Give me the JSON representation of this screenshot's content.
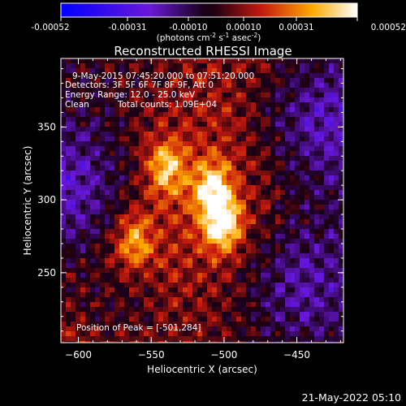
{
  "chart_data": {
    "type": "heatmap",
    "title": "Reconstructed RHESSI Image",
    "xlabel": "Heliocentric X (arcsec)",
    "ylabel": "Heliocentric Y (arcsec)",
    "xlim": [
      -612,
      -418
    ],
    "ylim": [
      202,
      397
    ],
    "xticks": [
      -600,
      -550,
      -500,
      -450
    ],
    "yticks": [
      250,
      300,
      350
    ],
    "colorbar": {
      "ticks": [
        "-0.00052",
        "-0.00031",
        "-0.00010",
        "0.00010",
        "0.00031",
        "0.00052"
      ],
      "unit_prefix": "(photons cm",
      "unit_exp1": "-2",
      "unit_mid": " s",
      "unit_exp2": "-1",
      "unit_mid2": " asec",
      "unit_exp3": "-2",
      "unit_suffix": ")",
      "range": [
        -0.00052,
        0.00052
      ]
    },
    "annotations": {
      "time_range": "9-May-2015 07:45:20.000 to 07:51:20.000",
      "detectors": "Detectors: 3F 5F 6F 7F 8F 9F, Att 0",
      "energy": "Energy Range: 12.0 - 25.0 keV",
      "method": "Clean",
      "counts": "Total counts: 1.09E+04",
      "peak": "Position of Peak = [-501,284]"
    },
    "sources": [
      {
        "x": -501,
        "y": 284,
        "value": 0.00052
      },
      {
        "x": -508,
        "y": 308,
        "value": 0.0004
      },
      {
        "x": -540,
        "y": 322,
        "value": 0.00036
      },
      {
        "x": -562,
        "y": 272,
        "value": 0.0003
      }
    ],
    "date_stamp": "21-May-2022 05:10"
  },
  "colors": {
    "background": "#000000",
    "foreground": "#ffffff",
    "negative_low": "#0000ff",
    "negative_mid": "#7a1fd0",
    "zero": "#200020",
    "positive_mid": "#d81a10",
    "positive_high": "#ffaa00",
    "positive_max": "#ffffff"
  }
}
